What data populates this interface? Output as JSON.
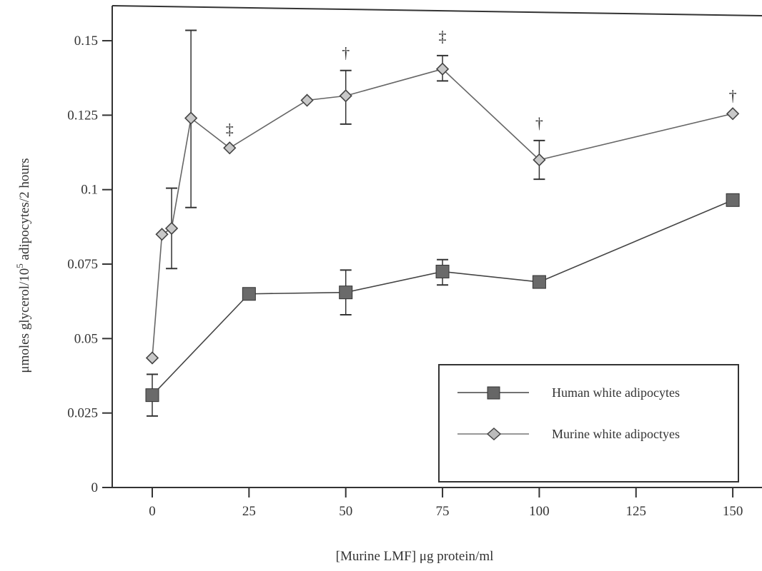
{
  "chart_data": {
    "type": "line",
    "title": "",
    "xlabel": "[Murine LMF] μg protein/ml",
    "ylabel_main": "μmoles glycerol/10",
    "ylabel_sup": "5",
    "ylabel_tail": " adipocytes/2 hours",
    "xlim": [
      -10,
      155
    ],
    "ylim": [
      0,
      0.15
    ],
    "x_ticks": [
      0,
      25,
      50,
      75,
      100,
      125,
      150
    ],
    "x_tick_labels": [
      "0",
      "25",
      "50",
      "75",
      "100",
      "125",
      "150"
    ],
    "y_ticks": [
      0,
      0.025,
      0.05,
      0.075,
      0.1,
      0.125,
      0.15
    ],
    "y_tick_labels": [
      "0",
      "0.025",
      "0.05",
      "0.075",
      "0.1",
      "0.125",
      "0.15"
    ],
    "grid": false,
    "legend_position": "bottom-right",
    "series": [
      {
        "name": "Human white adipocytes",
        "marker": "square",
        "color": "#555555",
        "x": [
          0,
          25,
          50,
          75,
          100,
          150
        ],
        "y": [
          0.031,
          0.065,
          0.0655,
          0.0725,
          0.069,
          0.0965
        ],
        "error_bars": [
          {
            "x": 0,
            "low": 0.024,
            "high": 0.038
          },
          {
            "x": 50,
            "low": 0.058,
            "high": 0.073
          },
          {
            "x": 75,
            "low": 0.068,
            "high": 0.0765
          }
        ]
      },
      {
        "name": "Murine white adipoctyes",
        "marker": "diamond",
        "color": "#666666",
        "x": [
          0,
          2.5,
          5,
          10,
          20,
          40,
          50,
          75,
          100,
          150
        ],
        "y": [
          0.0435,
          0.085,
          0.087,
          0.124,
          0.114,
          0.13,
          0.1315,
          0.1405,
          0.11,
          0.1255
        ],
        "error_bars": [
          {
            "x": 5,
            "low": 0.0735,
            "high": 0.1005
          },
          {
            "x": 10,
            "low": 0.094,
            "high": 0.1535
          },
          {
            "x": 50,
            "low": 0.122,
            "high": 0.14
          },
          {
            "x": 75,
            "low": 0.1365,
            "high": 0.145
          },
          {
            "x": 100,
            "low": 0.1035,
            "high": 0.1165
          }
        ]
      }
    ],
    "significance_markers": [
      {
        "x": 20,
        "y": 0.1185,
        "symbol": "‡"
      },
      {
        "x": 50,
        "y": 0.1442,
        "symbol": "†"
      },
      {
        "x": 75,
        "y": 0.1497,
        "symbol": "‡"
      },
      {
        "x": 100,
        "y": 0.1205,
        "symbol": "†"
      },
      {
        "x": 150,
        "y": 0.1298,
        "symbol": "†"
      }
    ]
  }
}
